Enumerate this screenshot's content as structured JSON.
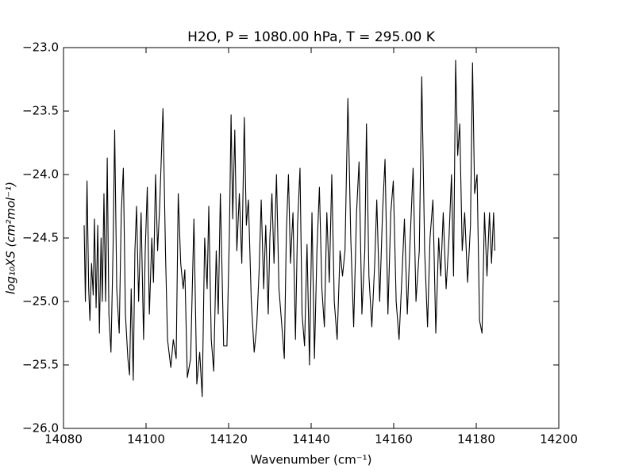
{
  "chart_data": {
    "type": "line",
    "title": "H2O, P = 1080.00 hPa, T = 295.00 K",
    "x_label": "Wavenumber (cm⁻¹)",
    "y_label": "log₁₀XS (cm²mol⁻¹)",
    "color": "#000000",
    "xlim": [
      14080,
      14200
    ],
    "xticks": [
      14080,
      14100,
      14120,
      14140,
      14160,
      14180,
      14200
    ],
    "ylim": [
      -26,
      -23
    ],
    "yticks": [
      {
        "value": -26,
        "label": "−26.0"
      },
      {
        "value": -25.5,
        "label": "−25.5"
      },
      {
        "value": -25,
        "label": "−25.0"
      },
      {
        "value": -24.5,
        "label": "−24.5"
      },
      {
        "value": -24,
        "label": "−24.0"
      },
      {
        "value": -23.5,
        "label": "−23.5"
      },
      {
        "value": -23,
        "label": "−23.0"
      }
    ],
    "x": [
      14085.0,
      14085.3,
      14085.7,
      14086.1,
      14086.4,
      14086.8,
      14087.2,
      14087.5,
      14087.9,
      14088.3,
      14088.7,
      14089.1,
      14089.4,
      14089.8,
      14090.2,
      14090.6,
      14091.0,
      14091.5,
      14092.0,
      14092.4,
      14092.9,
      14093.5,
      14094.0,
      14094.5,
      14095.0,
      14095.6,
      14096.0,
      14096.4,
      14096.9,
      14097.3,
      14097.7,
      14098.2,
      14098.8,
      14099.4,
      14099.8,
      14100.3,
      14100.8,
      14101.4,
      14101.8,
      14102.3,
      14102.8,
      14103.3,
      14104.1,
      14104.7,
      14105.2,
      14106.0,
      14106.6,
      14107.3,
      14107.8,
      14108.4,
      14109.0,
      14109.4,
      14110.0,
      14110.8,
      14111.6,
      14112.3,
      14113.0,
      14113.6,
      14114.2,
      14114.8,
      14115.2,
      14115.8,
      14116.4,
      14117.0,
      14117.5,
      14118.0,
      14118.8,
      14119.6,
      14120.2,
      14120.6,
      14121.0,
      14121.5,
      14122.0,
      14122.6,
      14123.2,
      14123.8,
      14124.3,
      14124.8,
      14125.5,
      14126.2,
      14126.8,
      14127.4,
      14127.9,
      14128.5,
      14129.0,
      14129.6,
      14130.0,
      14130.5,
      14131.0,
      14131.6,
      14132.2,
      14132.8,
      14133.5,
      14134.0,
      14134.5,
      14135.0,
      14135.6,
      14136.2,
      14136.7,
      14137.3,
      14137.8,
      14138.4,
      14139.0,
      14139.6,
      14140.2,
      14140.8,
      14141.4,
      14142.0,
      14142.6,
      14143.2,
      14143.8,
      14144.4,
      14145.0,
      14145.6,
      14146.3,
      14147.0,
      14147.6,
      14148.2,
      14148.9,
      14149.6,
      14150.3,
      14151.0,
      14151.6,
      14152.3,
      14153.0,
      14153.4,
      14154.0,
      14154.7,
      14155.4,
      14155.9,
      14156.6,
      14157.3,
      14157.9,
      14158.6,
      14159.3,
      14159.9,
      14160.6,
      14161.3,
      14162.0,
      14162.6,
      14163.3,
      14164.0,
      14164.7,
      14165.4,
      14166.2,
      14166.8,
      14167.5,
      14168.2,
      14168.8,
      14169.5,
      14170.2,
      14170.9,
      14171.4,
      14172.0,
      14172.7,
      14173.4,
      14174.0,
      14174.5,
      14175.0,
      14175.5,
      14176.0,
      14176.6,
      14177.2,
      14177.9,
      14178.6,
      14179.1,
      14179.6,
      14180.2,
      14180.8,
      14181.4,
      14182.0,
      14182.6,
      14183.2,
      14183.7,
      14184.2,
      14184.5
    ],
    "values": [
      -24.4,
      -25.0,
      -24.05,
      -24.9,
      -25.15,
      -24.7,
      -24.95,
      -24.35,
      -25.05,
      -24.4,
      -25.25,
      -24.5,
      -25.0,
      -24.15,
      -25.0,
      -23.87,
      -25.1,
      -25.4,
      -24.6,
      -23.65,
      -24.9,
      -25.25,
      -24.3,
      -23.95,
      -25.1,
      -25.45,
      -25.58,
      -24.9,
      -25.62,
      -24.6,
      -24.25,
      -25.0,
      -24.3,
      -25.3,
      -24.6,
      -24.1,
      -25.1,
      -24.5,
      -24.85,
      -24.0,
      -24.6,
      -24.25,
      -23.48,
      -24.6,
      -25.3,
      -25.52,
      -25.3,
      -25.45,
      -24.15,
      -24.7,
      -24.9,
      -24.75,
      -25.6,
      -25.45,
      -24.35,
      -25.65,
      -25.4,
      -25.75,
      -24.5,
      -24.9,
      -24.25,
      -25.3,
      -25.55,
      -24.6,
      -25.1,
      -24.15,
      -25.35,
      -25.35,
      -24.45,
      -23.53,
      -24.35,
      -23.65,
      -24.6,
      -24.15,
      -24.7,
      -23.55,
      -24.4,
      -24.2,
      -25.0,
      -25.4,
      -25.2,
      -24.75,
      -24.2,
      -24.9,
      -24.4,
      -25.1,
      -24.5,
      -24.15,
      -24.7,
      -24.0,
      -24.9,
      -25.15,
      -25.45,
      -24.45,
      -24.0,
      -24.7,
      -24.3,
      -25.3,
      -24.4,
      -23.95,
      -25.1,
      -25.35,
      -24.55,
      -25.5,
      -24.3,
      -25.45,
      -24.6,
      -24.1,
      -24.9,
      -25.2,
      -24.3,
      -24.85,
      -24.0,
      -25.0,
      -25.3,
      -24.6,
      -24.8,
      -24.6,
      -23.4,
      -24.5,
      -25.2,
      -24.3,
      -23.9,
      -25.1,
      -24.6,
      -23.6,
      -24.8,
      -25.2,
      -24.7,
      -24.2,
      -25.0,
      -24.3,
      -23.88,
      -25.1,
      -24.3,
      -24.05,
      -25.0,
      -25.3,
      -24.8,
      -24.35,
      -25.1,
      -24.5,
      -23.95,
      -25.0,
      -24.6,
      -23.23,
      -24.6,
      -25.2,
      -24.5,
      -24.2,
      -25.25,
      -24.5,
      -24.8,
      -24.3,
      -24.9,
      -24.5,
      -24.0,
      -24.8,
      -23.1,
      -23.85,
      -23.6,
      -24.6,
      -24.3,
      -24.85,
      -24.4,
      -23.12,
      -24.15,
      -24.0,
      -25.15,
      -25.25,
      -24.3,
      -24.8,
      -24.3,
      -24.7,
      -24.3,
      -24.6
    ]
  }
}
